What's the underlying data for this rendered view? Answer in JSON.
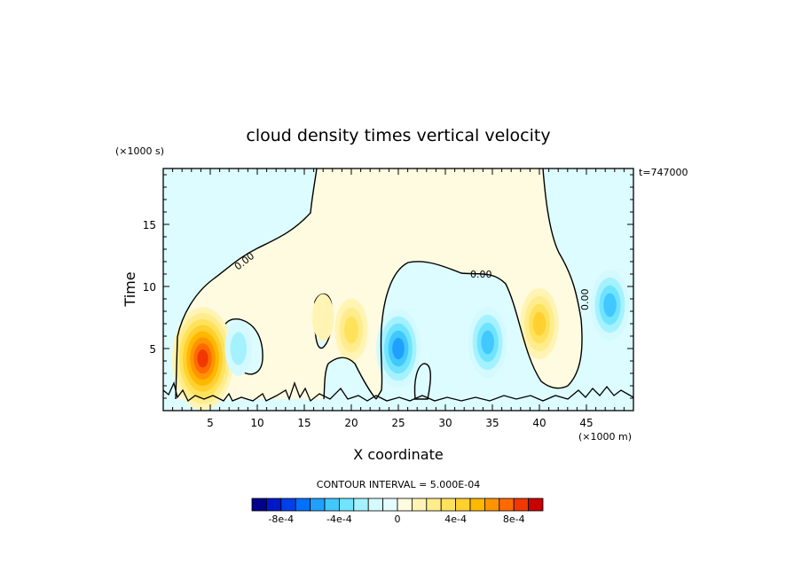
{
  "chart_data": {
    "type": "heatmap",
    "title": "cloud density times vertical velocity",
    "xlabel": "X coordinate",
    "ylabel": "Time",
    "x_units": "(×1000 m)",
    "y_units": "(×1000 s)",
    "time_stamp": "t=747000",
    "xlim": [
      0,
      50
    ],
    "ylim": [
      0,
      19.5
    ],
    "x_ticks": [
      5,
      10,
      15,
      20,
      25,
      30,
      35,
      40,
      45
    ],
    "y_ticks": [
      5,
      10,
      15
    ],
    "contour_interval_text": "CONTOUR INTERVAL = 5.000E-04",
    "contour_labels": [
      "0.00",
      "0.00",
      "0.00"
    ],
    "zero_contour_label": "0",
    "colorbar": {
      "levels": [
        -0.001,
        -0.0009,
        -0.0008,
        -0.0007,
        -0.0006,
        -0.0005,
        -0.0004,
        -0.0003,
        -0.0002,
        -0.0001,
        0,
        0.0001,
        0.0002,
        0.0003,
        0.0004,
        0.0005,
        0.0006,
        0.0007,
        0.0008,
        0.0009,
        0.001
      ],
      "colors": [
        "#00008c",
        "#0018c8",
        "#0040e8",
        "#0070ff",
        "#1fa0ff",
        "#40c8ff",
        "#70e4ff",
        "#a4f2ff",
        "#d4faff",
        "#e4fcff",
        "#fffbe0",
        "#fff4b4",
        "#ffec8c",
        "#ffe25c",
        "#ffd030",
        "#ffb800",
        "#ff9400",
        "#ff6a00",
        "#f03800",
        "#c80000"
      ],
      "tick_labels": [
        "-8e-4",
        "-4e-4",
        "0",
        "4e-4",
        "8e-4"
      ],
      "tick_values": [
        -0.0008,
        -0.0004,
        0,
        0.0004,
        0.0008
      ]
    },
    "features": [
      {
        "sign": "positive",
        "x": 4.2,
        "y": 4.2,
        "peak": 0.0009
      },
      {
        "sign": "negative",
        "x": 8.0,
        "y": 5.0,
        "peak": -0.0003
      },
      {
        "sign": "positive",
        "x": 17.0,
        "y": 7.5,
        "peak": 0.0002
      },
      {
        "sign": "positive",
        "x": 20.0,
        "y": 6.5,
        "peak": 0.0004
      },
      {
        "sign": "negative",
        "x": 25.0,
        "y": 5.0,
        "peak": -0.0006
      },
      {
        "sign": "negative",
        "x": 34.5,
        "y": 5.5,
        "peak": -0.0005
      },
      {
        "sign": "positive",
        "x": 40.0,
        "y": 7.0,
        "peak": 0.0005
      },
      {
        "sign": "negative",
        "x": 47.5,
        "y": 8.5,
        "peak": -0.0005
      }
    ]
  }
}
